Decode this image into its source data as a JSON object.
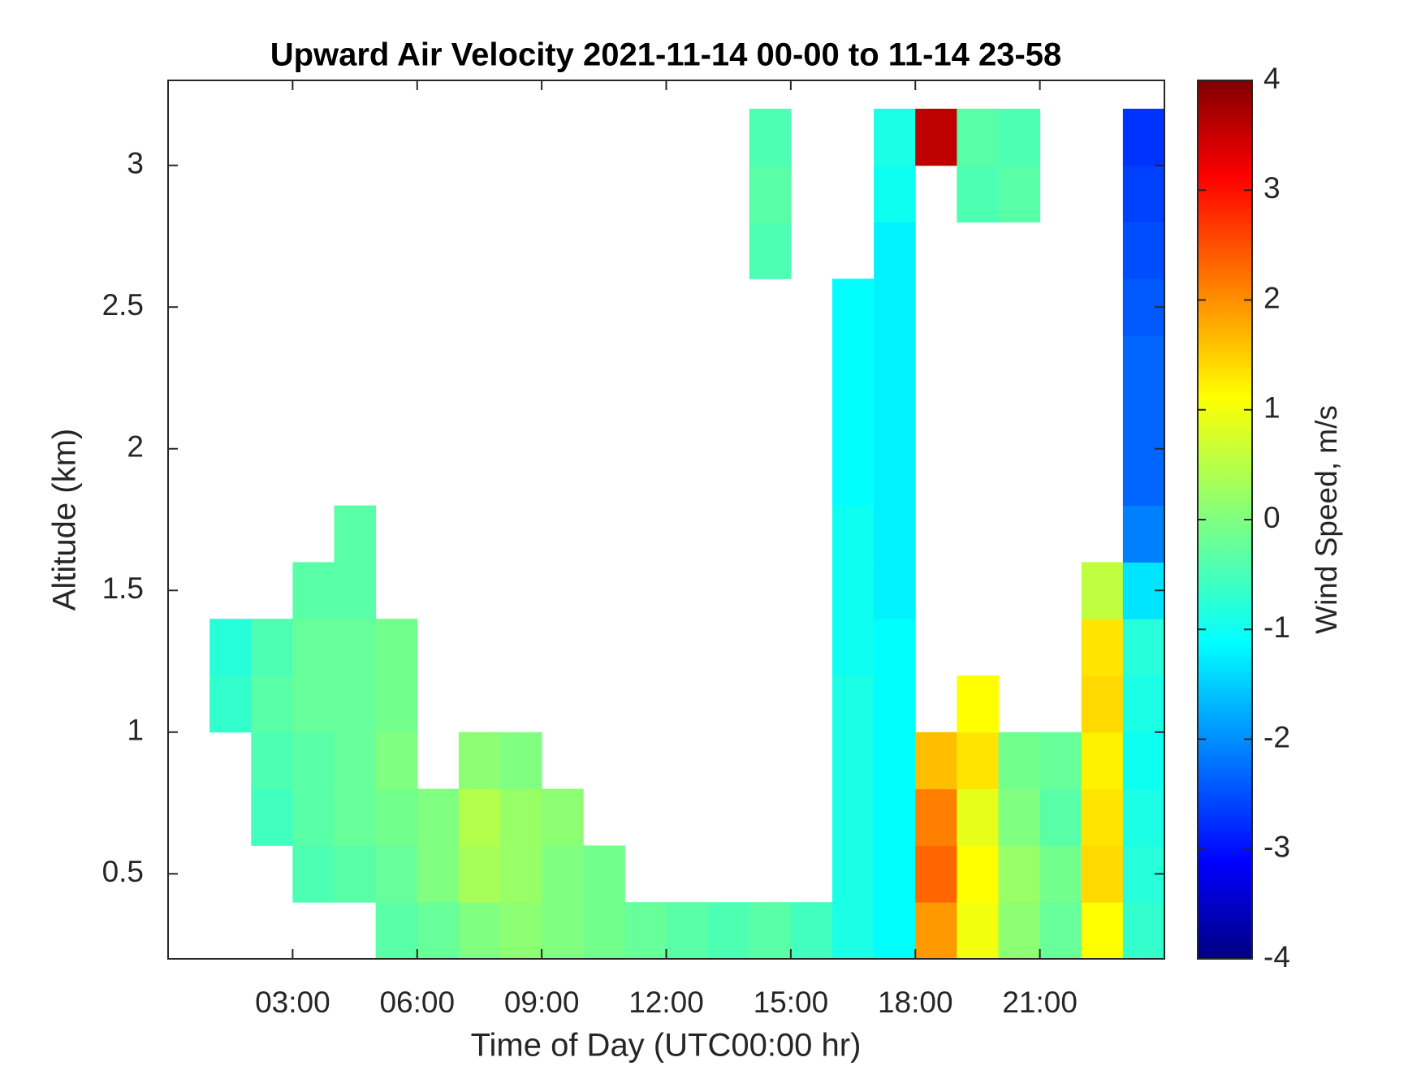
{
  "chart_data": {
    "type": "heatmap",
    "title": "Upward Air Velocity 2021-11-14 00-00 to 11-14 23-58",
    "x_label": "Time of Day (UTC00:00 hr)",
    "y_label": "Altitude (km)",
    "colorbar_label": "Wind Speed, m/s",
    "colormap": "jet",
    "x": [
      0.5,
      1.5,
      2.5,
      3.5,
      4.5,
      5.5,
      6.5,
      7.5,
      8.5,
      9.5,
      10.5,
      11.5,
      12.5,
      13.5,
      14.5,
      15.5,
      16.5,
      17.5,
      18.5,
      19.5,
      20.5,
      21.5,
      22.5,
      23.5
    ],
    "y": [
      0.3,
      0.5,
      0.7,
      0.9,
      1.1,
      1.3,
      1.5,
      1.7,
      1.9,
      2.1,
      2.3,
      2.5,
      2.7,
      2.9,
      3.1
    ],
    "values": [
      [
        null,
        null,
        null,
        null,
        null,
        -0.3,
        -0.2,
        0,
        0.1,
        0,
        -0.1,
        -0.2,
        -0.3,
        -0.4,
        -0.3,
        -0.5,
        -0.8,
        -1.0,
        1.8,
        0.9,
        0.1,
        -0.2,
        1.0,
        -0.6
      ],
      [
        null,
        null,
        null,
        -0.4,
        -0.3,
        -0.2,
        0,
        0.3,
        0.2,
        0,
        -0.1,
        null,
        null,
        null,
        null,
        null,
        -0.8,
        -1.0,
        2.2,
        1.0,
        0.2,
        -0.1,
        1.3,
        -0.7
      ],
      [
        null,
        null,
        -0.5,
        -0.3,
        -0.2,
        -0.1,
        0,
        0.4,
        0.2,
        0.1,
        null,
        null,
        null,
        null,
        null,
        null,
        -0.8,
        -1.0,
        2.0,
        0.8,
        0,
        -0.3,
        1.2,
        -0.8
      ],
      [
        null,
        null,
        -0.4,
        -0.3,
        -0.2,
        0,
        null,
        0.1,
        0,
        null,
        null,
        null,
        null,
        null,
        null,
        null,
        -0.8,
        -1.0,
        1.5,
        1.2,
        -0.1,
        -0.2,
        1.1,
        -0.9
      ],
      [
        null,
        -0.6,
        -0.3,
        -0.2,
        -0.2,
        -0.1,
        null,
        null,
        null,
        null,
        null,
        null,
        null,
        null,
        null,
        null,
        -0.8,
        -1.0,
        null,
        1.0,
        null,
        null,
        1.3,
        -0.8
      ],
      [
        null,
        -0.7,
        -0.4,
        -0.2,
        -0.2,
        -0.1,
        null,
        null,
        null,
        null,
        null,
        null,
        null,
        null,
        null,
        null,
        -0.9,
        -1.0,
        null,
        null,
        null,
        null,
        1.2,
        -0.7
      ],
      [
        null,
        null,
        null,
        -0.3,
        -0.3,
        null,
        null,
        null,
        null,
        null,
        null,
        null,
        null,
        null,
        null,
        null,
        -0.9,
        -1.1,
        null,
        null,
        null,
        null,
        0.5,
        -1.2
      ],
      [
        null,
        null,
        null,
        null,
        -0.3,
        null,
        null,
        null,
        null,
        null,
        null,
        null,
        null,
        null,
        null,
        null,
        -0.9,
        -1.1,
        null,
        null,
        null,
        null,
        null,
        -2.0
      ],
      [
        null,
        null,
        null,
        null,
        null,
        null,
        null,
        null,
        null,
        null,
        null,
        null,
        null,
        null,
        null,
        null,
        -1.0,
        -1.1,
        null,
        null,
        null,
        null,
        null,
        -2.2
      ],
      [
        null,
        null,
        null,
        null,
        null,
        null,
        null,
        null,
        null,
        null,
        null,
        null,
        null,
        null,
        null,
        null,
        -1.0,
        -1.1,
        null,
        null,
        null,
        null,
        null,
        -2.2
      ],
      [
        null,
        null,
        null,
        null,
        null,
        null,
        null,
        null,
        null,
        null,
        null,
        null,
        null,
        null,
        null,
        null,
        -1.0,
        -1.1,
        null,
        null,
        null,
        null,
        null,
        -2.2
      ],
      [
        null,
        null,
        null,
        null,
        null,
        null,
        null,
        null,
        null,
        null,
        null,
        null,
        null,
        null,
        null,
        null,
        -1.0,
        -1.1,
        null,
        null,
        null,
        null,
        null,
        -2.3
      ],
      [
        null,
        null,
        null,
        null,
        null,
        null,
        null,
        null,
        null,
        null,
        null,
        null,
        null,
        null,
        -0.4,
        null,
        null,
        -1.1,
        null,
        null,
        null,
        null,
        null,
        -2.4
      ],
      [
        null,
        null,
        null,
        null,
        null,
        null,
        null,
        null,
        null,
        null,
        null,
        null,
        null,
        null,
        -0.3,
        null,
        null,
        -0.9,
        null,
        -0.4,
        -0.3,
        null,
        null,
        -2.5
      ],
      [
        null,
        null,
        null,
        null,
        null,
        null,
        null,
        null,
        null,
        null,
        null,
        null,
        null,
        null,
        -0.4,
        null,
        null,
        -0.8,
        3.5,
        -0.3,
        -0.4,
        null,
        null,
        -2.6
      ]
    ],
    "xlim": [
      0,
      24
    ],
    "ylim": [
      0.2,
      3.3
    ],
    "xticks": [
      {
        "value": 3,
        "label": "03:00"
      },
      {
        "value": 6,
        "label": "06:00"
      },
      {
        "value": 9,
        "label": "09:00"
      },
      {
        "value": 12,
        "label": "12:00"
      },
      {
        "value": 15,
        "label": "15:00"
      },
      {
        "value": 18,
        "label": "18:00"
      },
      {
        "value": 21,
        "label": "21:00"
      }
    ],
    "yticks": [
      0.5,
      1,
      1.5,
      2,
      2.5,
      3
    ],
    "clim": [
      -4,
      4
    ],
    "cticks": [
      -4,
      -3,
      -2,
      -1,
      0,
      1,
      2,
      3,
      4
    ],
    "grid": false
  }
}
